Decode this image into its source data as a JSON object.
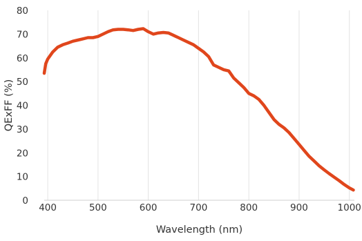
{
  "chart_data": {
    "type": "line",
    "title": "",
    "xlabel": "Wavelength (nm)",
    "ylabel": "QExFF (%)",
    "xlim": [
      393,
      1010
    ],
    "ylim": [
      0,
      80
    ],
    "x_ticks": [
      400,
      500,
      600,
      700,
      800,
      900,
      1000
    ],
    "y_ticks": [
      0,
      10,
      20,
      30,
      40,
      50,
      60,
      70,
      80
    ],
    "grid": "vertical lines at x ticks",
    "legend": "none",
    "series": [
      {
        "color": "#e0461c",
        "points": [
          [
            393,
            53.5
          ],
          [
            396,
            57.5
          ],
          [
            400,
            59.5
          ],
          [
            410,
            62.5
          ],
          [
            420,
            64.5
          ],
          [
            430,
            65.5
          ],
          [
            440,
            66.2
          ],
          [
            450,
            67
          ],
          [
            460,
            67.5
          ],
          [
            470,
            68
          ],
          [
            480,
            68.5
          ],
          [
            490,
            68.5
          ],
          [
            500,
            69
          ],
          [
            510,
            70
          ],
          [
            520,
            71
          ],
          [
            530,
            71.8
          ],
          [
            540,
            72
          ],
          [
            550,
            72
          ],
          [
            560,
            71.8
          ],
          [
            570,
            71.5
          ],
          [
            580,
            72
          ],
          [
            590,
            72.3
          ],
          [
            600,
            71
          ],
          [
            610,
            70
          ],
          [
            620,
            70.5
          ],
          [
            630,
            70.7
          ],
          [
            640,
            70.5
          ],
          [
            650,
            69.5
          ],
          [
            660,
            68.5
          ],
          [
            670,
            67.5
          ],
          [
            680,
            66.5
          ],
          [
            690,
            65.5
          ],
          [
            700,
            64
          ],
          [
            710,
            62.5
          ],
          [
            720,
            60.5
          ],
          [
            730,
            57
          ],
          [
            740,
            56
          ],
          [
            750,
            55
          ],
          [
            760,
            54.5
          ],
          [
            770,
            51.5
          ],
          [
            780,
            49.5
          ],
          [
            790,
            47.5
          ],
          [
            800,
            45
          ],
          [
            810,
            44
          ],
          [
            820,
            42.5
          ],
          [
            830,
            40
          ],
          [
            840,
            37
          ],
          [
            850,
            34
          ],
          [
            860,
            32
          ],
          [
            870,
            30.5
          ],
          [
            880,
            28.5
          ],
          [
            890,
            26
          ],
          [
            900,
            23.5
          ],
          [
            910,
            21
          ],
          [
            920,
            18.5
          ],
          [
            930,
            16.5
          ],
          [
            940,
            14.5
          ],
          [
            950,
            12.8
          ],
          [
            960,
            11.2
          ],
          [
            970,
            9.7
          ],
          [
            980,
            8.2
          ],
          [
            990,
            6.6
          ],
          [
            1000,
            5.2
          ],
          [
            1008,
            4.3
          ]
        ]
      }
    ]
  }
}
